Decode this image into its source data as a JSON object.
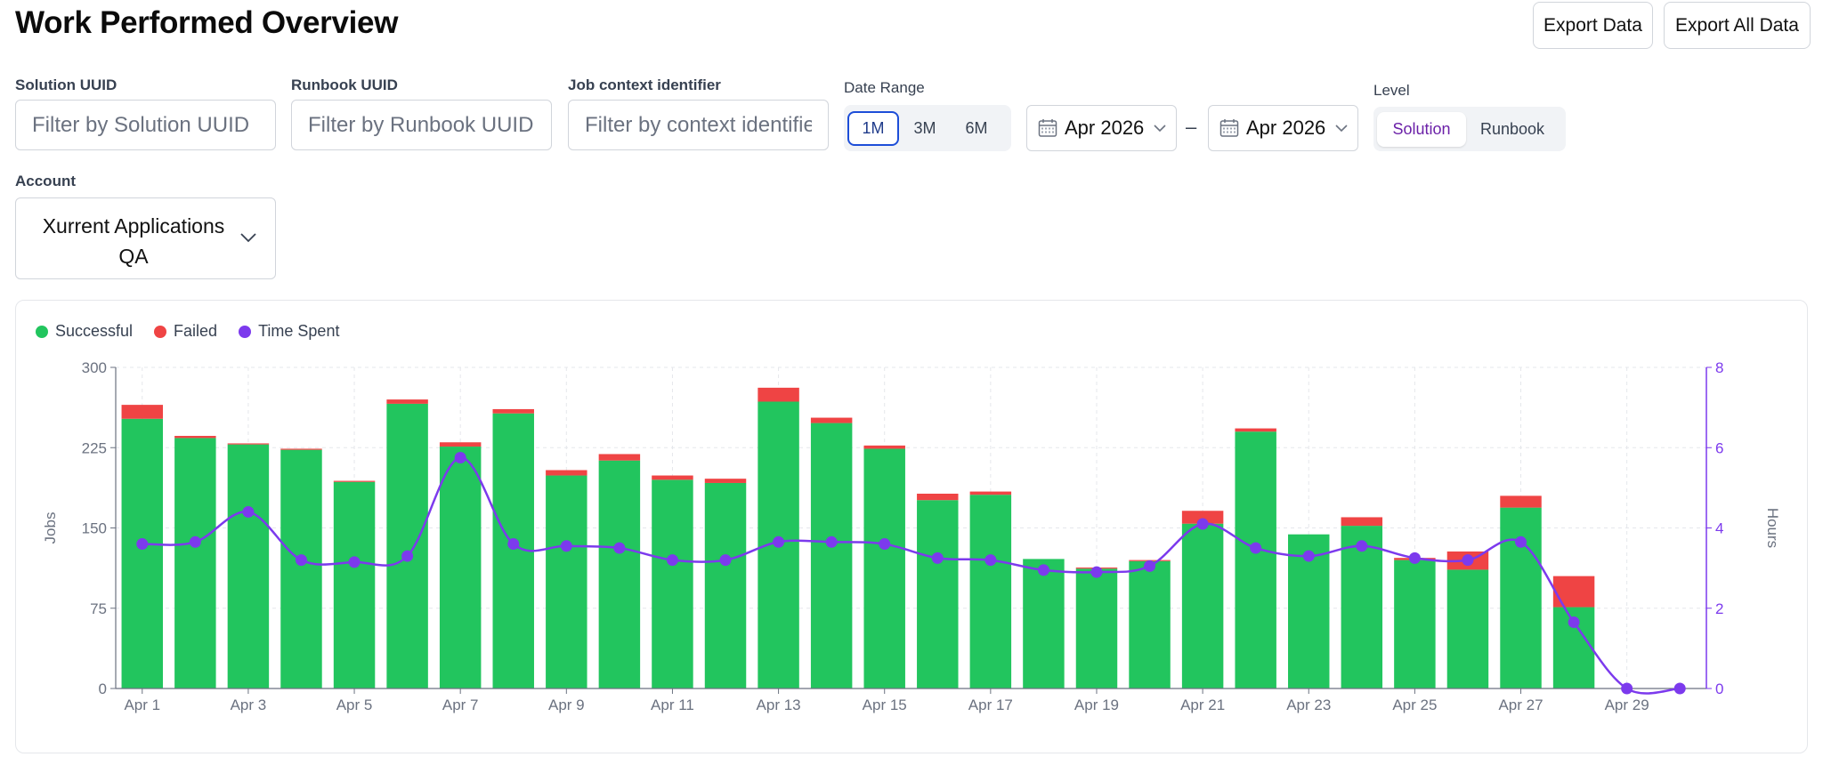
{
  "header": {
    "title": "Work Performed Overview",
    "export_data": "Export Data",
    "export_all": "Export All Data"
  },
  "filters": {
    "solution": {
      "label": "Solution UUID",
      "placeholder": "Filter by Solution UUID",
      "value": ""
    },
    "runbook": {
      "label": "Runbook UUID",
      "placeholder": "Filter by Runbook UUID",
      "value": ""
    },
    "job_context": {
      "label": "Job context identifier",
      "placeholder": "Filter by context identifier",
      "value": ""
    },
    "date_range": {
      "label": "Date Range",
      "options": [
        "1M",
        "3M",
        "6M"
      ],
      "selected": "1M",
      "from": "Apr 2026",
      "separator": "–",
      "to": "Apr 2026"
    },
    "level": {
      "label": "Level",
      "options": [
        "Solution",
        "Runbook"
      ],
      "selected": "Solution"
    },
    "account": {
      "label": "Account",
      "value": "Xurrent Applications QA"
    }
  },
  "colors": {
    "successful": "#22c55e",
    "failed": "#ef4444",
    "time_spent": "#7c3aed",
    "accent": "#1d4ed8"
  },
  "chart_data": {
    "type": "bar",
    "stacked": true,
    "legend": [
      "Successful",
      "Failed",
      "Time Spent"
    ],
    "x": [
      "Apr 1",
      "Apr 2",
      "Apr 3",
      "Apr 4",
      "Apr 5",
      "Apr 6",
      "Apr 7",
      "Apr 8",
      "Apr 9",
      "Apr 10",
      "Apr 11",
      "Apr 12",
      "Apr 13",
      "Apr 14",
      "Apr 15",
      "Apr 16",
      "Apr 17",
      "Apr 18",
      "Apr 19",
      "Apr 20",
      "Apr 21",
      "Apr 22",
      "Apr 23",
      "Apr 24",
      "Apr 25",
      "Apr 26",
      "Apr 27",
      "Apr 28",
      "Apr 29",
      "Apr 30"
    ],
    "xtick_labels": [
      "Apr 1",
      "Apr 3",
      "Apr 5",
      "Apr 7",
      "Apr 9",
      "Apr 11",
      "Apr 13",
      "Apr 15",
      "Apr 17",
      "Apr 19",
      "Apr 21",
      "Apr 23",
      "Apr 25",
      "Apr 27",
      "Apr 29"
    ],
    "series": [
      {
        "name": "Successful",
        "axis": "left",
        "values": [
          252,
          234,
          228,
          223,
          193,
          266,
          226,
          257,
          199,
          213,
          195,
          192,
          268,
          248,
          224,
          176,
          181,
          121,
          112,
          119,
          154,
          240,
          144,
          152,
          120,
          111,
          169,
          76,
          0,
          0
        ]
      },
      {
        "name": "Failed",
        "axis": "left",
        "values": [
          13,
          2,
          1,
          1,
          1,
          4,
          4,
          4,
          5,
          6,
          4,
          4,
          13,
          5,
          3,
          6,
          3,
          0,
          1,
          1,
          12,
          3,
          0,
          8,
          2,
          17,
          11,
          29,
          0,
          0
        ]
      },
      {
        "name": "Time Spent",
        "axis": "right",
        "type": "line",
        "values": [
          3.6,
          3.65,
          4.4,
          3.2,
          3.15,
          3.3,
          5.75,
          3.6,
          3.55,
          3.5,
          3.2,
          3.2,
          3.65,
          3.65,
          3.6,
          3.25,
          3.2,
          2.95,
          2.9,
          3.05,
          4.1,
          3.5,
          3.3,
          3.55,
          3.25,
          3.2,
          3.65,
          1.65,
          0,
          0
        ]
      }
    ],
    "ylabel": "Jobs",
    "ylim": [
      0,
      300
    ],
    "yticks": [
      0,
      75,
      150,
      225,
      300
    ],
    "y2label": "Hours",
    "y2lim": [
      0,
      8
    ],
    "y2ticks": [
      0,
      2,
      4,
      6,
      8
    ],
    "grid": true
  }
}
